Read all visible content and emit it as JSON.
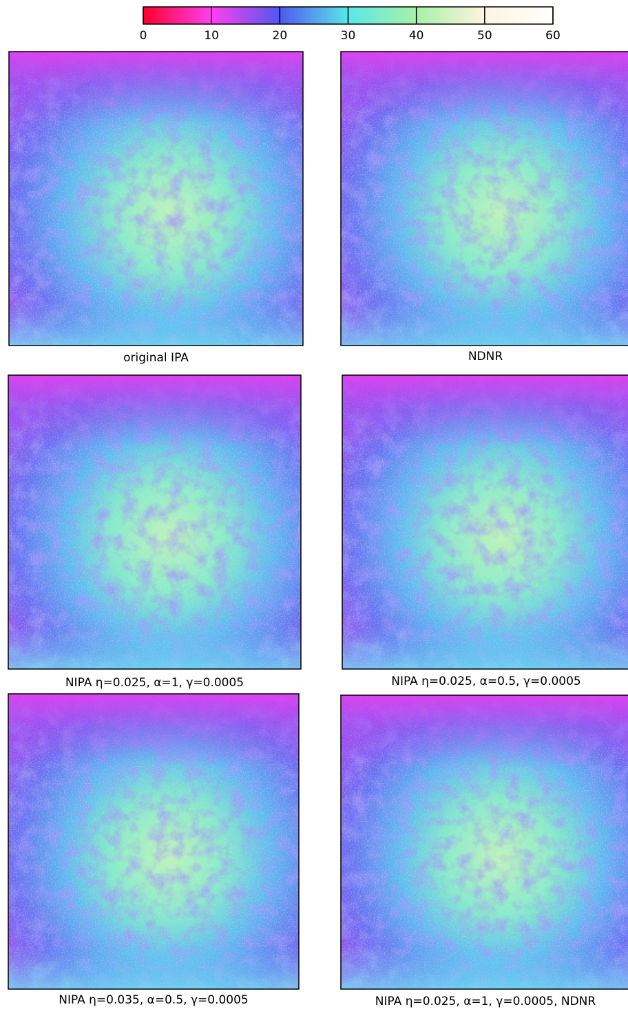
{
  "colorbar": {
    "ticks": [
      0,
      10,
      20,
      30,
      40,
      50,
      60
    ],
    "colors": [
      "#ff0028",
      "#ff40f0",
      "#5058f0",
      "#58e8e8",
      "#a8f0a8",
      "#fff4e0",
      "#ffffff"
    ]
  },
  "panels": [
    {
      "caption": "original IPA"
    },
    {
      "caption": "NDNR"
    },
    {
      "caption": "NIPA η=0.025, α=1, γ=0.0005"
    },
    {
      "caption": "NIPA η=0.025, α=0.5, γ=0.0005"
    },
    {
      "caption": "NIPA η=0.035, α=0.5, γ=0.0005"
    },
    {
      "caption": "NIPA η=0.025, α=1, γ=0.0005, NDNR"
    }
  ]
}
